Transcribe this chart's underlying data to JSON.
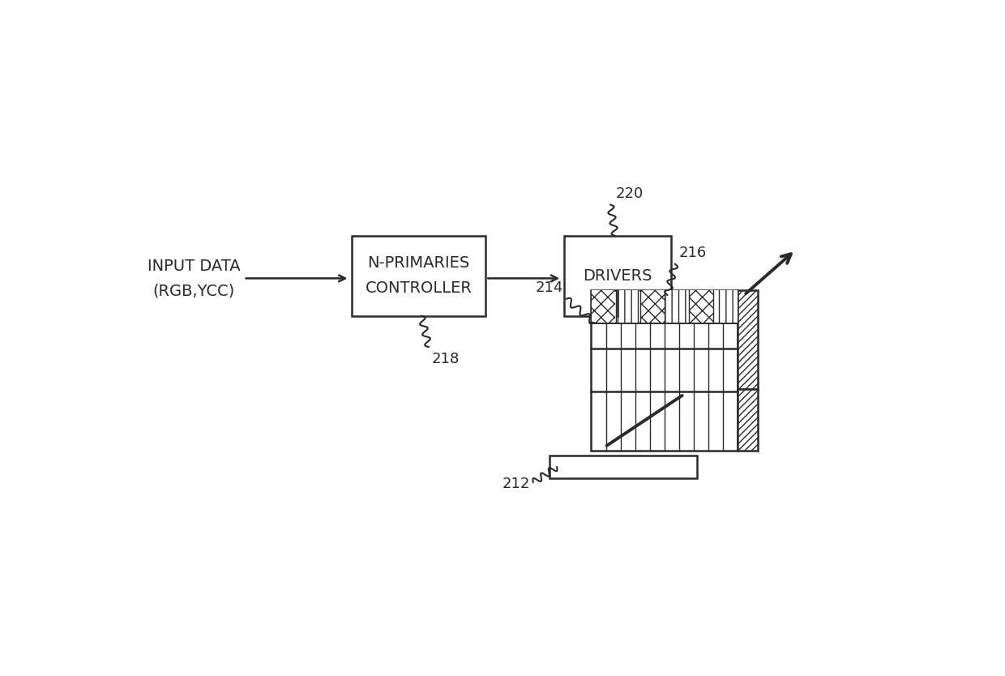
{
  "bg_color": "#ffffff",
  "line_color": "#2a2a2a",
  "lw": 1.8,
  "lw_thin": 1.0,
  "lw_diag": 2.5,
  "input_text_line1": "INPUT DATA",
  "input_text_line2": "(RGB,YCC)",
  "controller_text_line1": "N-PRIMARIES",
  "controller_text_line2": "CONTROLLER",
  "drivers_text": "DRIVERS",
  "label_218": "218",
  "label_220": "220",
  "label_216": "216",
  "label_214": "214",
  "label_212": "212",
  "font_size_box": 14,
  "font_size_ref": 13,
  "fig_w": 12.4,
  "fig_h": 8.34
}
